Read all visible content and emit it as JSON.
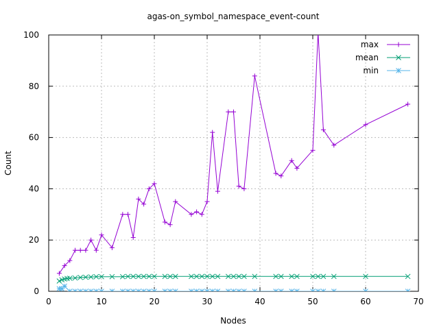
{
  "chart_data": {
    "type": "line",
    "title": "agas-on_symbol_namespace_event-count",
    "xlabel": "Nodes",
    "ylabel": "Count",
    "xlim": [
      0,
      70
    ],
    "ylim": [
      0,
      100
    ],
    "x_ticks": [
      0,
      10,
      20,
      30,
      40,
      50,
      60,
      70
    ],
    "y_ticks": [
      0,
      20,
      40,
      60,
      80,
      100
    ],
    "grid": true,
    "legend_position": "top-right",
    "series": [
      {
        "name": "max",
        "color": "#9400d3",
        "marker": "plus",
        "x": [
          2,
          3,
          4,
          5,
          6,
          7,
          8,
          9,
          10,
          12,
          14,
          15,
          16,
          17,
          18,
          19,
          20,
          22,
          23,
          24,
          27,
          28,
          29,
          30,
          31,
          32,
          34,
          35,
          36,
          37,
          39,
          43,
          44,
          46,
          47,
          50,
          51,
          52,
          54,
          60,
          68
        ],
        "y": [
          7,
          10,
          12,
          16,
          16,
          16,
          20,
          16,
          22,
          17,
          30,
          30,
          21,
          36,
          34,
          40,
          42,
          27,
          26,
          35,
          30,
          31,
          30,
          35,
          62,
          39,
          70,
          70,
          41,
          40,
          84,
          46,
          45,
          51,
          48,
          55,
          101,
          63,
          57,
          65,
          73
        ]
      },
      {
        "name": "mean",
        "color": "#009e73",
        "marker": "cross",
        "x": [
          2,
          2.5,
          3,
          3.5,
          4,
          5,
          6,
          7,
          8,
          9,
          10,
          12,
          14,
          15,
          16,
          17,
          18,
          19,
          20,
          22,
          23,
          24,
          27,
          28,
          29,
          30,
          31,
          32,
          34,
          35,
          36,
          37,
          39,
          43,
          44,
          46,
          47,
          50,
          51,
          52,
          54,
          60,
          68
        ],
        "y": [
          4,
          4.5,
          4.8,
          5,
          5.1,
          5.2,
          5.4,
          5.5,
          5.6,
          5.7,
          5.7,
          5.7,
          5.7,
          5.8,
          5.8,
          5.8,
          5.8,
          5.8,
          5.8,
          5.8,
          5.8,
          5.8,
          5.8,
          5.8,
          5.8,
          5.8,
          5.8,
          5.8,
          5.8,
          5.8,
          5.8,
          5.8,
          5.8,
          5.8,
          5.8,
          5.8,
          5.8,
          5.8,
          5.8,
          5.8,
          5.8,
          5.8,
          5.8
        ]
      },
      {
        "name": "min",
        "color": "#56b4e9",
        "marker": "star",
        "x": [
          2,
          2.5,
          3,
          4,
          5,
          6,
          7,
          8,
          9,
          10,
          12,
          14,
          15,
          16,
          17,
          18,
          19,
          20,
          22,
          23,
          24,
          27,
          28,
          29,
          30,
          31,
          32,
          34,
          35,
          36,
          37,
          39,
          43,
          44,
          46,
          47,
          50,
          51,
          52,
          54,
          60,
          68
        ],
        "y": [
          1,
          1,
          2,
          0,
          0,
          0,
          0,
          0,
          0,
          0,
          0,
          0,
          0,
          0,
          0,
          0,
          0,
          0,
          0,
          0,
          0,
          0,
          0,
          0,
          0,
          0,
          0,
          0,
          0,
          0,
          0,
          0,
          0,
          0,
          0,
          0,
          0,
          0,
          0,
          0,
          0,
          0
        ]
      }
    ]
  }
}
